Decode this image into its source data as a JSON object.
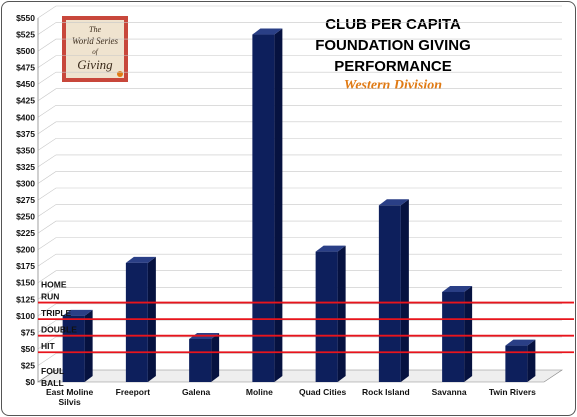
{
  "logo": {
    "line1": "The",
    "line2": "World Series",
    "line3": "of",
    "line4": "Giving",
    "bg_color": "#c8473b"
  },
  "chart_data": {
    "type": "bar",
    "title_lines": [
      "CLUB PER CAPITA",
      "FOUNDATION GIVING",
      "PERFORMANCE"
    ],
    "subtitle": "Western Division",
    "categories": [
      "East Moline Silvis",
      "Freeport",
      "Galena",
      "Moline",
      "Quad Cities",
      "Rock Island",
      "Savanna",
      "Twin Rivers"
    ],
    "values": [
      100,
      180,
      65,
      525,
      197,
      267,
      136,
      55
    ],
    "ylim": [
      0,
      550
    ],
    "ytick_step": 25,
    "ytick_prefix": "$",
    "grid": true,
    "bar_color": "#0d1f5c",
    "threshold_color": "#e8141c",
    "thresholds": [
      {
        "label": "HOME RUN",
        "value": 120
      },
      {
        "label": "TRIPLE",
        "value": 95
      },
      {
        "label": "DOUBLE",
        "value": 70
      },
      {
        "label": "HIT",
        "value": 45
      },
      {
        "label": "FOUL BALL",
        "value": 0
      }
    ]
  }
}
